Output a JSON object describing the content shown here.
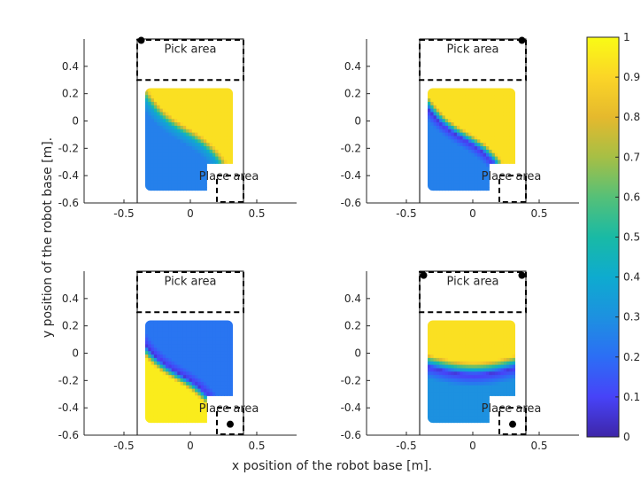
{
  "figure": {
    "xlabel": "x position of the robot base [m].",
    "ylabel": "y position of the robot base [m]."
  },
  "chart_data": [
    {
      "type": "heatmap",
      "panel": "top-left",
      "x_ticks": [
        "-0.5",
        "0",
        "0.5"
      ],
      "y_ticks": [
        "0.4",
        "0.2",
        "0",
        "-0.2",
        "-0.4",
        "-0.6"
      ],
      "xlim": [
        -0.8,
        0.8
      ],
      "ylim": [
        -0.6,
        0.6
      ],
      "pick_label": "Pick area",
      "place_label": "Place area",
      "markers": [
        [
          -0.37,
          0.59
        ]
      ],
      "gradient": {
        "type": "diag",
        "center": 0.0,
        "dip": 0.38,
        "val_low": 0.25,
        "val_high": 0.93
      }
    },
    {
      "type": "heatmap",
      "panel": "top-right",
      "x_ticks": [
        "-0.5",
        "0",
        "0.5"
      ],
      "y_ticks": [
        "0.4",
        "0.2",
        "0",
        "-0.2",
        "-0.4",
        "-0.6"
      ],
      "xlim": [
        -0.8,
        0.8
      ],
      "ylim": [
        -0.6,
        0.6
      ],
      "pick_label": "Pick area",
      "place_label": "Place area",
      "markers": [
        [
          0.37,
          0.59
        ]
      ],
      "gradient": {
        "type": "diag",
        "center": 0.08,
        "dip": 0.06,
        "val_low": 0.25,
        "val_high": 0.93
      }
    },
    {
      "type": "heatmap",
      "panel": "bottom-left",
      "x_ticks": [
        "-0.5",
        "0",
        "0.5"
      ],
      "y_ticks": [
        "0.4",
        "0.2",
        "0",
        "-0.2",
        "-0.4",
        "-0.6"
      ],
      "xlim": [
        -0.8,
        0.8
      ],
      "ylim": [
        -0.6,
        0.6
      ],
      "pick_label": "Pick area",
      "place_label": "Place area",
      "markers": [
        [
          0.3,
          -0.52
        ]
      ],
      "gradient": {
        "type": "diag",
        "center": 0.12,
        "dip": 0.06,
        "val_low": 0.96,
        "val_high": 0.22
      }
    },
    {
      "type": "heatmap",
      "panel": "bottom-right",
      "x_ticks": [
        "-0.5",
        "0",
        "0.5"
      ],
      "y_ticks": [
        "0.4",
        "0.2",
        "0",
        "-0.2",
        "-0.4",
        "-0.6"
      ],
      "xlim": [
        -0.8,
        0.8
      ],
      "ylim": [
        -0.6,
        0.6
      ],
      "pick_label": "Pick area",
      "place_label": "Place area",
      "markers": [
        [
          -0.37,
          0.57
        ],
        [
          0.37,
          0.57
        ],
        [
          0.3,
          -0.52
        ]
      ],
      "gradient": {
        "type": "band",
        "center": -0.05,
        "dip": 0.06,
        "val_low": 0.3,
        "val_high": 0.93
      }
    },
    {
      "type": "colorbar",
      "range": [
        0,
        1
      ],
      "ticks": [
        "1",
        "0.9",
        "0.8",
        "0.7",
        "0.6",
        "0.5",
        "0.4",
        "0.3",
        "0.2",
        "0.1",
        "0"
      ],
      "colormap": [
        "#3e26a8",
        "#4743f8",
        "#2c6ef5",
        "#1d91e0",
        "#0eabcf",
        "#19baa5",
        "#55c078",
        "#a6bf45",
        "#e5b92d",
        "#fbd527",
        "#f9fb15"
      ]
    }
  ]
}
